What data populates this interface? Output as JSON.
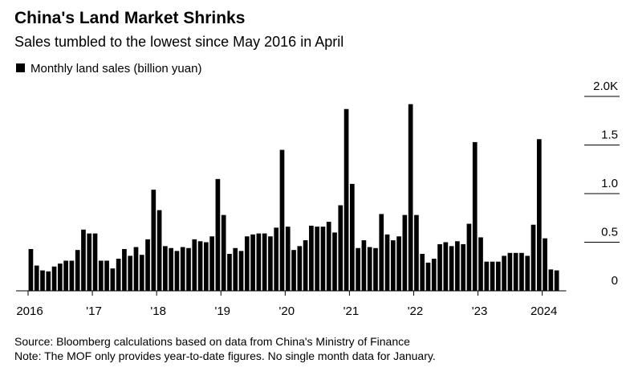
{
  "chart_data": {
    "type": "bar",
    "title": "China's Land Market Shrinks",
    "subtitle": "Sales tumbled to the lowest since May 2016 in April",
    "source": "Source: Bloomberg calculations based on data from China's Ministry of Finance",
    "note": "Note: The MOF only provides year-to-date figures. No single month data for January.",
    "series": [
      {
        "name": "Monthly land sales (billion yuan)",
        "color": "#000000",
        "values": [
          0.43,
          0.26,
          0.21,
          0.2,
          0.25,
          0.28,
          0.31,
          0.31,
          0.42,
          0.63,
          0.59,
          0.59,
          0.31,
          0.31,
          0.23,
          0.33,
          0.43,
          0.36,
          0.45,
          0.37,
          0.53,
          1.04,
          0.83,
          0.46,
          0.44,
          0.41,
          0.45,
          0.44,
          0.53,
          0.51,
          0.5,
          0.56,
          1.15,
          0.78,
          0.38,
          0.44,
          0.41,
          0.56,
          0.58,
          0.59,
          0.59,
          0.56,
          0.65,
          1.45,
          0.66,
          0.42,
          0.46,
          0.52,
          0.67,
          0.66,
          0.66,
          0.71,
          0.6,
          0.88,
          1.87,
          1.1,
          0.44,
          0.52,
          0.45,
          0.44,
          0.79,
          0.58,
          0.52,
          0.56,
          0.78,
          1.92,
          0.78,
          0.38,
          0.29,
          0.33,
          0.48,
          0.5,
          0.46,
          0.51,
          0.48,
          0.69,
          1.53,
          0.55,
          0.3,
          0.3,
          0.3,
          0.36,
          0.39,
          0.39,
          0.39,
          0.36,
          0.68,
          1.56,
          0.54,
          0.22,
          0.21
        ]
      }
    ],
    "categories": [
      "2016",
      null,
      null,
      null,
      null,
      null,
      null,
      null,
      null,
      null,
      null,
      "'17",
      null,
      null,
      null,
      null,
      null,
      null,
      null,
      null,
      null,
      null,
      "'18",
      null,
      null,
      null,
      null,
      null,
      null,
      null,
      null,
      null,
      null,
      "'19",
      null,
      null,
      null,
      null,
      null,
      null,
      null,
      null,
      null,
      null,
      "'20",
      null,
      null,
      null,
      null,
      null,
      null,
      null,
      null,
      null,
      null,
      "'21",
      null,
      null,
      null,
      null,
      null,
      null,
      null,
      null,
      null,
      null,
      "'22",
      null,
      null,
      null,
      null,
      null,
      null,
      null,
      null,
      null,
      null,
      "'23",
      null,
      null,
      null,
      null,
      null,
      null,
      null,
      null,
      null,
      null,
      "2024",
      null,
      null
    ],
    "ylim": [
      0,
      2
    ],
    "yticks": [
      0,
      0.5,
      {
        "value": 1,
        "label": "1.0"
      },
      1.5,
      {
        "value": 2,
        "label": "2.0K"
      }
    ]
  }
}
